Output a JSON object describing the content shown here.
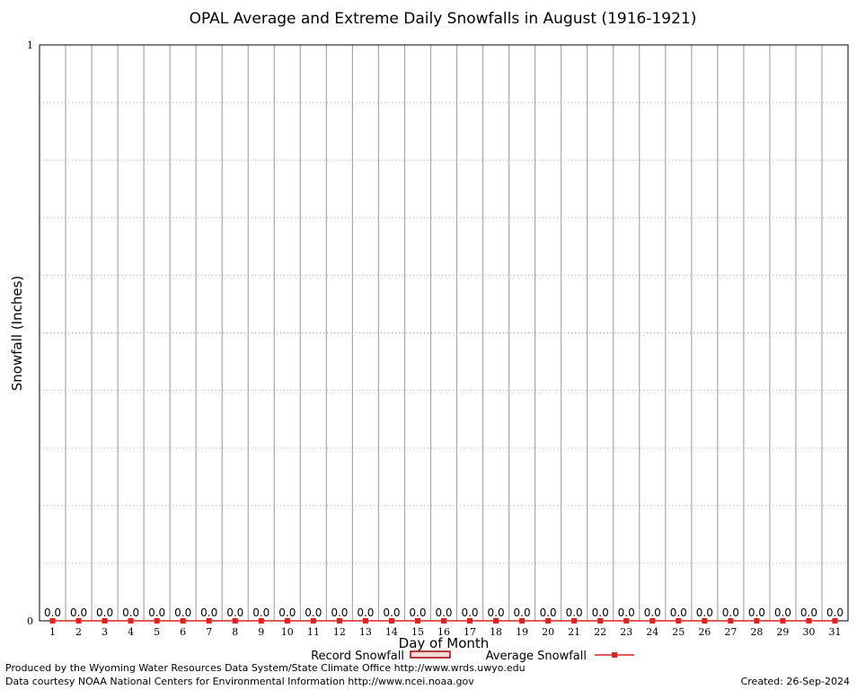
{
  "chart_data": {
    "type": "bar",
    "title": "OPAL Average and Extreme Daily Snowfalls in August (1916-1921)",
    "xlabel": "Day of Month",
    "ylabel": "Snowfall (Inches)",
    "ylim": [
      0,
      1
    ],
    "yticks": [
      "0",
      "1"
    ],
    "grid": true,
    "legend_position": "bottom",
    "categories": [
      "1",
      "2",
      "3",
      "4",
      "5",
      "6",
      "7",
      "8",
      "9",
      "10",
      "11",
      "12",
      "13",
      "14",
      "15",
      "16",
      "17",
      "18",
      "19",
      "20",
      "21",
      "22",
      "23",
      "24",
      "25",
      "26",
      "27",
      "28",
      "29",
      "30",
      "31"
    ],
    "series": [
      {
        "name": "Record Snowfall",
        "kind": "bar",
        "color": "#cc0000",
        "values": [
          0,
          0,
          0,
          0,
          0,
          0,
          0,
          0,
          0,
          0,
          0,
          0,
          0,
          0,
          0,
          0,
          0,
          0,
          0,
          0,
          0,
          0,
          0,
          0,
          0,
          0,
          0,
          0,
          0,
          0,
          0
        ]
      },
      {
        "name": "Average Snowfall",
        "kind": "line",
        "color": "#dd2222",
        "values": [
          0,
          0,
          0,
          0,
          0,
          0,
          0,
          0,
          0,
          0,
          0,
          0,
          0,
          0,
          0,
          0,
          0,
          0,
          0,
          0,
          0,
          0,
          0,
          0,
          0,
          0,
          0,
          0,
          0,
          0,
          0
        ]
      }
    ],
    "data_labels": [
      "0.0",
      "0.0",
      "0.0",
      "0.0",
      "0.0",
      "0.0",
      "0.0",
      "0.0",
      "0.0",
      "0.0",
      "0.0",
      "0.0",
      "0.0",
      "0.0",
      "0.0",
      "0.0",
      "0.0",
      "0.0",
      "0.0",
      "0.0",
      "0.0",
      "0.0",
      "0.0",
      "0.0",
      "0.0",
      "0.0",
      "0.0",
      "0.0",
      "0.0",
      "0.0",
      "0.0"
    ]
  },
  "footer": {
    "produced_by": "Produced by the Wyoming Water Resources Data System/State Climate Office http://www.wrds.uwyo.edu",
    "data_courtesy": "Data courtesy NOAA National Centers for Environmental Information http://www.ncei.noaa.gov",
    "created": "Created: 26-Sep-2024"
  }
}
